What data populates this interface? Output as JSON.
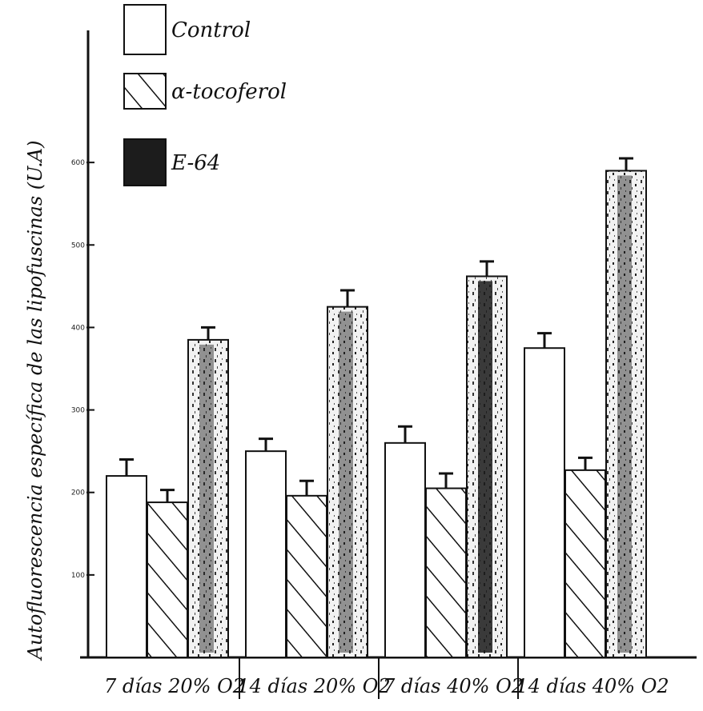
{
  "chart_data": {
    "type": "bar",
    "title": "",
    "xlabel": "",
    "ylabel": "Autofluorescencia específica de las lipofuscinas (U.A)",
    "ylim": [
      0,
      700
    ],
    "yticks": [
      100,
      200,
      300,
      400,
      500,
      600
    ],
    "ytick_labels": [
      "100",
      "200",
      "300",
      "400",
      "500",
      "600"
    ],
    "categories": [
      "7 días 20% O2",
      "14 días 20% O2",
      "7 días 40% O2",
      "14 días 40% O2"
    ],
    "series": [
      {
        "name": "Control",
        "values": [
          220,
          250,
          260,
          375
        ],
        "errors": [
          20,
          15,
          20,
          18
        ]
      },
      {
        "name": "α-tocoferol",
        "values": [
          188,
          196,
          205,
          227
        ],
        "errors": [
          15,
          18,
          18,
          15
        ]
      },
      {
        "name": "E-64",
        "values": [
          385,
          425,
          462,
          590
        ],
        "errors": [
          15,
          20,
          18,
          15
        ]
      }
    ],
    "legend_position": "top-left",
    "grid": false
  },
  "colors": {
    "axis": "#111111",
    "control_fill": "#ffffff",
    "hatch": "#111111",
    "e64_fill": "#2a2a2a"
  }
}
